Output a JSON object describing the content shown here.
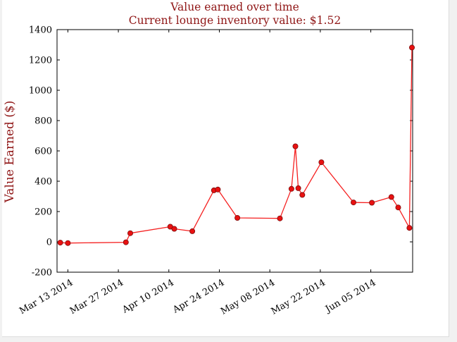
{
  "window": {
    "background_color": "#f1f1f1",
    "figure_background_color": "#ffffff"
  },
  "titles": {
    "line1": "Value earned over time",
    "line2": "Current lounge inventory value: $1.52",
    "color": "#8f1515"
  },
  "chart_data": {
    "type": "line",
    "title": "Value earned over time",
    "subtitle": "Current lounge inventory value: $1.52",
    "title_color": "#8f1515",
    "xlabel": "",
    "ylabel": "Value Earned ($)",
    "ylabel_color": "#8f1515",
    "ylim": [
      -200,
      1400
    ],
    "yticks": [
      -200,
      0,
      200,
      400,
      600,
      800,
      1000,
      1200,
      1400
    ],
    "x_unit": "days since Mar 10 2014",
    "xlim": [
      0,
      98.6
    ],
    "xticks": [
      {
        "pos": 3,
        "label": "Mar 13 2014"
      },
      {
        "pos": 17,
        "label": "Mar 27 2014"
      },
      {
        "pos": 31,
        "label": "Apr 10 2014"
      },
      {
        "pos": 45,
        "label": "Apr 24 2014"
      },
      {
        "pos": 59,
        "label": "May 08 2014"
      },
      {
        "pos": 73,
        "label": "May 22 2014"
      },
      {
        "pos": 87,
        "label": "Jun 05 2014"
      }
    ],
    "grid": false,
    "legend": "none",
    "axis_color": "#000000",
    "tick_label_color": "#000000",
    "series": [
      {
        "name": "Value Earned",
        "line_color": "#f52020",
        "marker": "circle",
        "marker_color": "#e81111",
        "marker_edge_color": "#7a0c0c",
        "points": [
          [
            0.9,
            -5
          ],
          [
            3.0,
            -8
          ],
          [
            19.1,
            -3
          ],
          [
            20.3,
            57
          ],
          [
            31.4,
            100
          ],
          [
            32.5,
            86
          ],
          [
            37.5,
            70
          ],
          [
            43.5,
            340
          ],
          [
            44.6,
            345
          ],
          [
            50.0,
            158
          ],
          [
            61.8,
            155
          ],
          [
            65.0,
            350
          ],
          [
            66.1,
            630
          ],
          [
            66.9,
            354
          ],
          [
            68.0,
            310
          ],
          [
            73.3,
            525
          ],
          [
            82.2,
            260
          ],
          [
            87.3,
            258
          ],
          [
            92.7,
            296
          ],
          [
            94.6,
            227
          ],
          [
            97.7,
            92
          ],
          [
            98.4,
            1282
          ]
        ]
      }
    ]
  }
}
